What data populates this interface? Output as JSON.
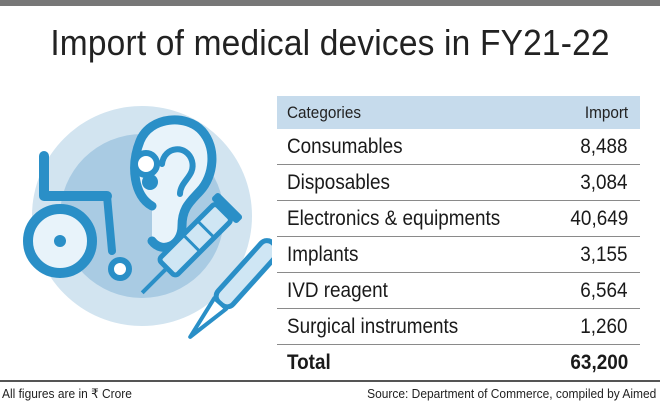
{
  "title": "Import of medical devices in FY21-22",
  "table": {
    "headers": {
      "category": "Categories",
      "import": "Import"
    },
    "rows": [
      {
        "category": "Consumables",
        "import": "8,488"
      },
      {
        "category": "Disposables",
        "import": "3,084"
      },
      {
        "category": "Electronics & equipments",
        "import": "40,649"
      },
      {
        "category": "Implants",
        "import": "3,155"
      },
      {
        "category": "IVD reagent",
        "import": "6,564"
      },
      {
        "category": "Surgical instruments",
        "import": "1,260"
      }
    ],
    "total": {
      "label": "Total",
      "value": "63,200"
    }
  },
  "footer": {
    "note": "All figures are in ₹ Crore",
    "source": "Source: Department of Commerce, compiled by Aimed"
  },
  "colors": {
    "header_bg": "#c6dbec",
    "circle_outer": "#cfe2ef",
    "circle_inner": "#a9cbe3",
    "icon_blue": "#2a8fc7",
    "icon_light": "#cfe6f4"
  },
  "illustration_icons": [
    "hearing-aid-icon",
    "wheelchair-icon",
    "syringe-icon",
    "scalpel-icon"
  ]
}
